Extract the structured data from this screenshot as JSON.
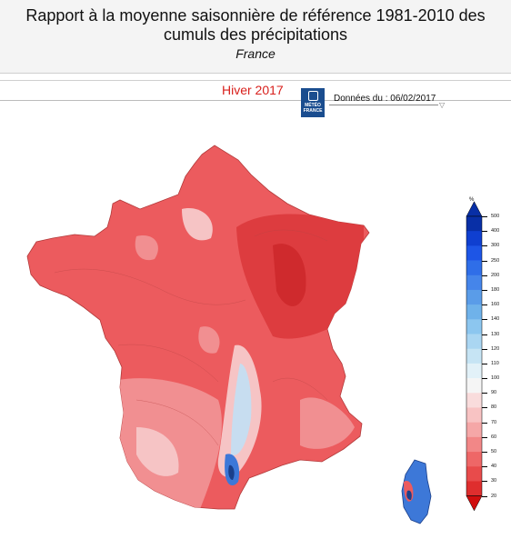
{
  "header": {
    "title": "Rapport à la moyenne saisonnière de référence 1981-2010 des cumuls des précipitations",
    "subtitle": "France"
  },
  "season": "Hiver 2017",
  "logo_text": [
    "MÉTÉO",
    "FRANCE"
  ],
  "date_label": "Données du : 06/02/2017",
  "legend": {
    "unit": "%",
    "values": [
      "500",
      "400",
      "300",
      "250",
      "200",
      "180",
      "160",
      "140",
      "130",
      "120",
      "110",
      "100",
      "90",
      "80",
      "70",
      "60",
      "50",
      "40",
      "30",
      "20"
    ],
    "colors": [
      "#082fa6",
      "#0f3fd0",
      "#1d55e6",
      "#2f6ee8",
      "#4585ea",
      "#5a9ce8",
      "#6fb2ea",
      "#8cc6ef",
      "#aad6f2",
      "#c6e4f4",
      "#e2f1f8",
      "#f5f5f5",
      "#f9dcdc",
      "#f8c3c3",
      "#f5a7a7",
      "#f28787",
      "#ee6767",
      "#e84b4b",
      "#df2e2e",
      "#d00e0e"
    ]
  },
  "map_colors": {
    "base": "#ec5b5e",
    "dark": "#dd3c3f",
    "light": "#f18f91",
    "pale": "#f6c4c5",
    "blue_light": "#c7ddf0",
    "blue": "#3d78d8",
    "blue_dark": "#1b3f8a"
  }
}
